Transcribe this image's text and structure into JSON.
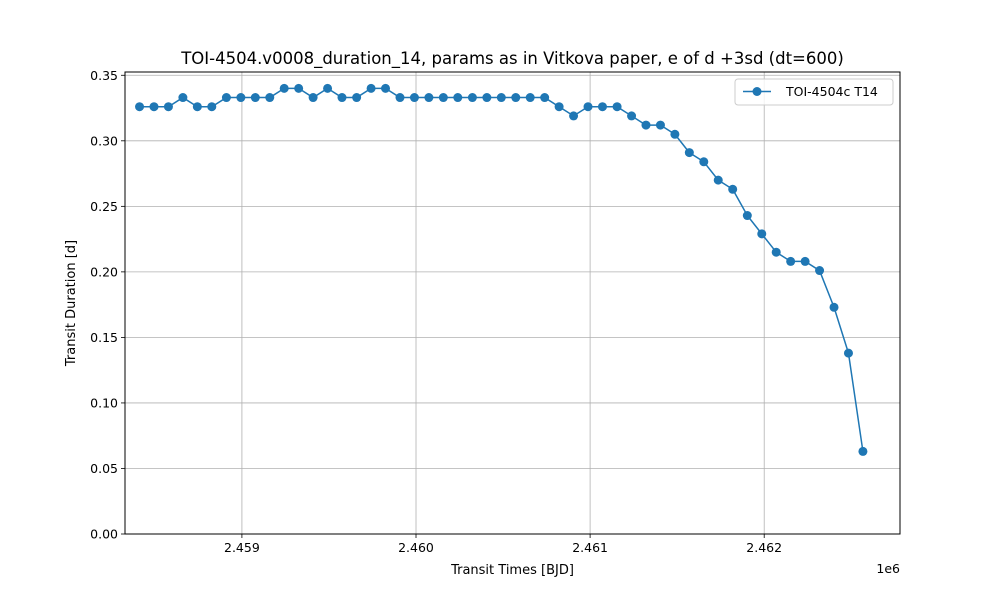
{
  "chart_data": {
    "type": "line",
    "title": "TOI-4504.v0008_duration_14, params as in Vitkova paper, e of d +3sd (dt=600)",
    "xlabel": "Transit Times [BJD]",
    "ylabel": "Transit Duration [d]",
    "x_offset_label": "1e6",
    "xlim": [
      2458328.5,
      2462780.0
    ],
    "ylim": [
      0.0,
      0.3525
    ],
    "xticks": [
      2459000,
      2460000,
      2461000,
      2462000
    ],
    "xtick_labels": [
      "2.459",
      "2.460",
      "2.461",
      "2.462"
    ],
    "yticks": [
      0.0,
      0.05,
      0.1,
      0.15,
      0.2,
      0.25,
      0.3,
      0.35
    ],
    "ytick_labels": [
      "0.00",
      "0.05",
      "0.10",
      "0.15",
      "0.20",
      "0.25",
      "0.30",
      "0.35"
    ],
    "grid": true,
    "legend_position": "top-right",
    "series": [
      {
        "name": "TOI-4504c T14",
        "color": "#1f77b4",
        "marker": "circle",
        "x": [
          2458412,
          2458495,
          2458578,
          2458661,
          2458744,
          2458827,
          2458911,
          2458994,
          2459077,
          2459160,
          2459243,
          2459326,
          2459409,
          2459492,
          2459575,
          2459659,
          2459742,
          2459825,
          2459908,
          2459991,
          2460074,
          2460157,
          2460240,
          2460324,
          2460407,
          2460490,
          2460573,
          2460656,
          2460739,
          2460822,
          2460905,
          2460988,
          2461071,
          2461155,
          2461238,
          2461321,
          2461404,
          2461487,
          2461570,
          2461653,
          2461736,
          2461819,
          2461903,
          2461986,
          2462069,
          2462152,
          2462235,
          2462318,
          2462401,
          2462484,
          2462567
        ],
        "y": [
          0.326,
          0.326,
          0.326,
          0.333,
          0.326,
          0.326,
          0.333,
          0.333,
          0.333,
          0.333,
          0.34,
          0.34,
          0.333,
          0.34,
          0.333,
          0.333,
          0.34,
          0.34,
          0.333,
          0.333,
          0.333,
          0.333,
          0.333,
          0.333,
          0.333,
          0.333,
          0.333,
          0.333,
          0.333,
          0.326,
          0.319,
          0.326,
          0.326,
          0.326,
          0.319,
          0.312,
          0.312,
          0.305,
          0.291,
          0.284,
          0.27,
          0.263,
          0.243,
          0.229,
          0.215,
          0.208,
          0.208,
          0.201,
          0.173,
          0.138,
          0.063
        ]
      }
    ]
  }
}
